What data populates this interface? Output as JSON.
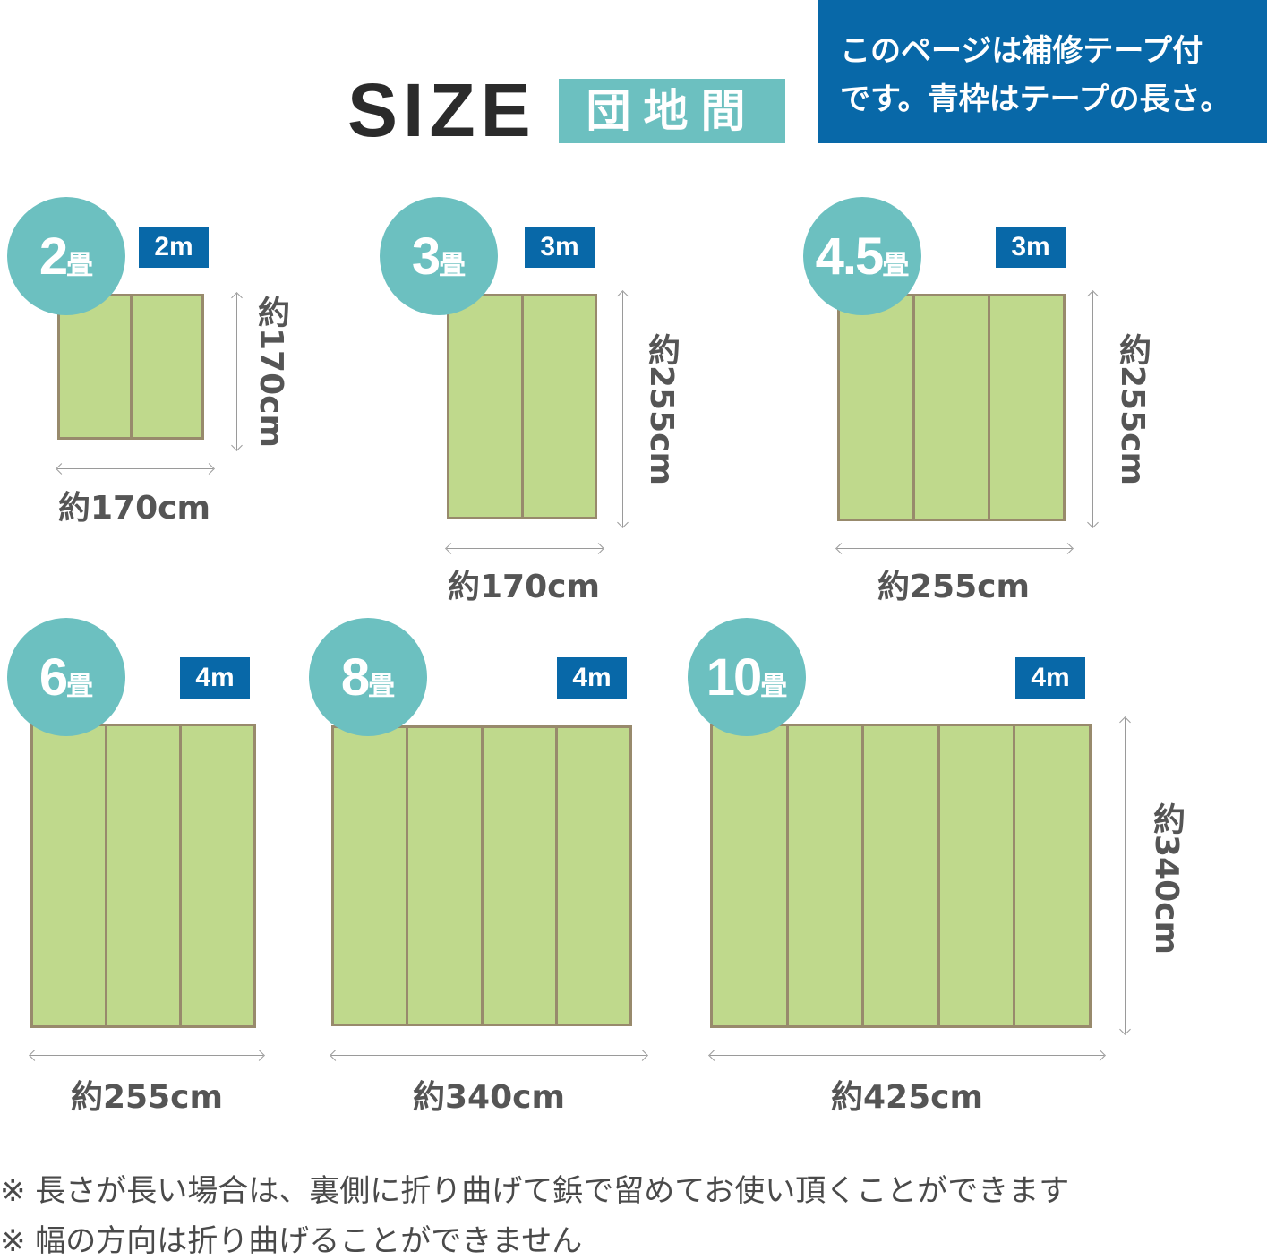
{
  "header": {
    "title": "SIZE",
    "type_badge": "団地間",
    "notice_line1": "このページは補修テープ付",
    "notice_line2": "です。青枠はテープの長さ。"
  },
  "items": [
    {
      "num": "2",
      "unit": "畳",
      "tape": "2m",
      "width": "約170cm",
      "height": "約170cm",
      "panels": 2
    },
    {
      "num": "3",
      "unit": "畳",
      "tape": "3m",
      "width": "約170cm",
      "height": "約255cm",
      "panels": 2
    },
    {
      "num": "4.5",
      "unit": "畳",
      "tape": "3m",
      "width": "約255cm",
      "height": "約255cm",
      "panels": 3
    },
    {
      "num": "6",
      "unit": "畳",
      "tape": "4m",
      "width": "約255cm",
      "height": "",
      "panels": 3
    },
    {
      "num": "8",
      "unit": "畳",
      "tape": "4m",
      "width": "約340cm",
      "height": "",
      "panels": 4
    },
    {
      "num": "10",
      "unit": "畳",
      "tape": "4m",
      "width": "約425cm",
      "height": "約340cm",
      "panels": 5
    }
  ],
  "notes": [
    "※ 長さが長い場合は、裏側に折り曲げて鋲で留めてお使い頂くことができます",
    "※ 幅の方向は折り曲げることができません"
  ],
  "colors": {
    "teal": "#6cc0c0",
    "blue": "#0868a8",
    "mat": "#bfd98c",
    "border": "#988a6c"
  }
}
